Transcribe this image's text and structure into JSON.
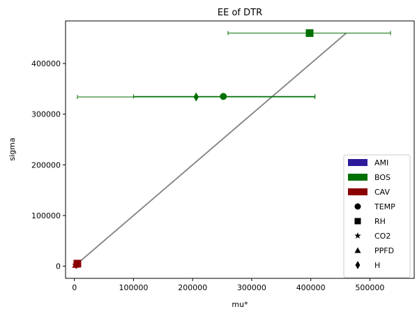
{
  "chart_data": {
    "type": "scatter",
    "title": "EE of DTR",
    "xlabel": "mu*",
    "ylabel": "sigma",
    "xlim": [
      -15000,
      575000
    ],
    "ylim": [
      -24000,
      484000
    ],
    "x_ticks": [
      0,
      100000,
      200000,
      300000,
      400000,
      500000
    ],
    "y_ticks": [
      0,
      100000,
      200000,
      300000,
      400000
    ],
    "x_tick_labels": [
      "0",
      "100000",
      "200000",
      "300000",
      "400000",
      "500000"
    ],
    "y_tick_labels": [
      "0",
      "100000",
      "200000",
      "300000",
      "400000"
    ],
    "grid": false,
    "legend_position": "lower-right",
    "reference_line": {
      "from": [
        0,
        0
      ],
      "to": [
        460000,
        460000
      ],
      "color": "#808080"
    },
    "series": [
      {
        "name": "AMI",
        "color": "#2b1b9a",
        "points": []
      },
      {
        "name": "BOS",
        "color": "#007000",
        "points": [
          {
            "marker": "square",
            "x": 398000,
            "y": 460000,
            "xerr_lo": 260000,
            "xerr_hi": 535000
          },
          {
            "marker": "circle",
            "x": 252000,
            "y": 335000,
            "xerr_lo": 100000,
            "xerr_hi": 407000
          },
          {
            "marker": "diamond",
            "x": 206000,
            "y": 334000,
            "xerr_lo": 5000,
            "xerr_hi": 407000
          }
        ]
      },
      {
        "name": "CAV",
        "color": "#8b0000",
        "points": [
          {
            "marker": "square",
            "x": 5000,
            "y": 5000
          },
          {
            "marker": "circle",
            "x": 4000,
            "y": 4000
          },
          {
            "marker": "diamond",
            "x": 3000,
            "y": 3000
          },
          {
            "marker": "star",
            "x": 2000,
            "y": 2000
          },
          {
            "marker": "triangle",
            "x": 2000,
            "y": 2500
          }
        ]
      }
    ],
    "legend": [
      {
        "type": "patch",
        "label": "AMI",
        "color": "#2b1b9a"
      },
      {
        "type": "patch",
        "label": "BOS",
        "color": "#007000"
      },
      {
        "type": "patch",
        "label": "CAV",
        "color": "#8b0000"
      },
      {
        "type": "marker",
        "label": "TEMP",
        "marker": "circle"
      },
      {
        "type": "marker",
        "label": "RH",
        "marker": "square"
      },
      {
        "type": "marker",
        "label": "CO2",
        "marker": "star"
      },
      {
        "type": "marker",
        "label": "PPFD",
        "marker": "triangle"
      },
      {
        "type": "marker",
        "label": "H",
        "marker": "diamond"
      }
    ]
  }
}
